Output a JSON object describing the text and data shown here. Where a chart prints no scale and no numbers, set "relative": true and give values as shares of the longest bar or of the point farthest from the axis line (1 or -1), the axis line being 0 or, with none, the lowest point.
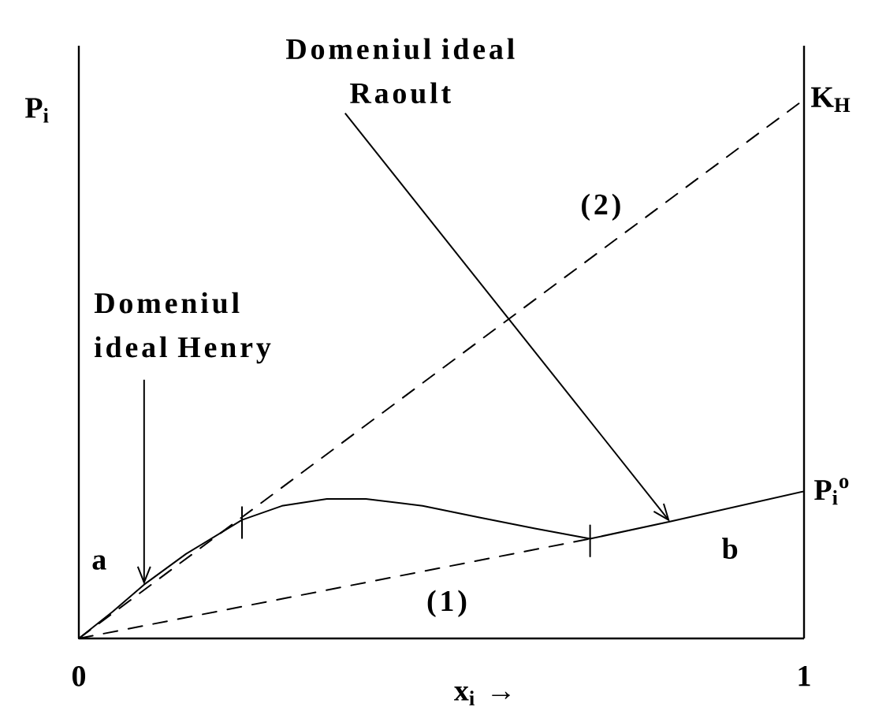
{
  "chart_data": {
    "type": "line",
    "relative": true,
    "xlabel": "x$_{i}$ →",
    "ylabel": "P$_{i}$",
    "xlim": [
      0,
      1
    ],
    "xticks": [
      0,
      1
    ],
    "series": [
      {
        "color": "#000000",
        "line_style": "solid",
        "x": [
          0,
          0.047,
          0.09,
          0.148,
          0.225,
          0.28,
          0.342,
          0.396,
          0.474,
          0.551,
          0.629,
          0.705,
          0.815,
          1
        ],
        "values": [
          0,
          0.05,
          0.1,
          0.157,
          0.22,
          0.246,
          0.259,
          0.259,
          0.246,
          0.225,
          0.204,
          0.185,
          0.217,
          0.273
        ]
      },
      {
        "name": "(2)",
        "color": "#000000",
        "line_style": "dashed",
        "x": [
          0,
          1
        ],
        "values": [
          0,
          1
        ]
      },
      {
        "name": "(1)",
        "color": "#000000",
        "line_style": "dashed",
        "x": [
          0,
          0.705
        ],
        "values": [
          0,
          0.185
        ]
      },
      {
        "color": "#000000",
        "line_style": "solid",
        "x": [
          0.225,
          0.225
        ],
        "values": [
          0.186,
          0.244
        ]
      },
      {
        "color": "#000000",
        "line_style": "solid",
        "x": [
          0.705,
          0.705
        ],
        "values": [
          0.152,
          0.21
        ]
      }
    ],
    "annotations": [
      {
        "text": "Domeniul ideal Henry",
        "x": 0.09,
        "y": 0.1
      },
      {
        "text": "Domeniul ideal Raoult",
        "x": 0.815,
        "y": 0.217
      },
      "a",
      "b",
      {
        "text": "K$_{H}$",
        "x": 1,
        "y": 1
      },
      {
        "text": "P$_{i}$$^{o}$",
        "x": 1,
        "y": 0.273
      }
    ]
  }
}
